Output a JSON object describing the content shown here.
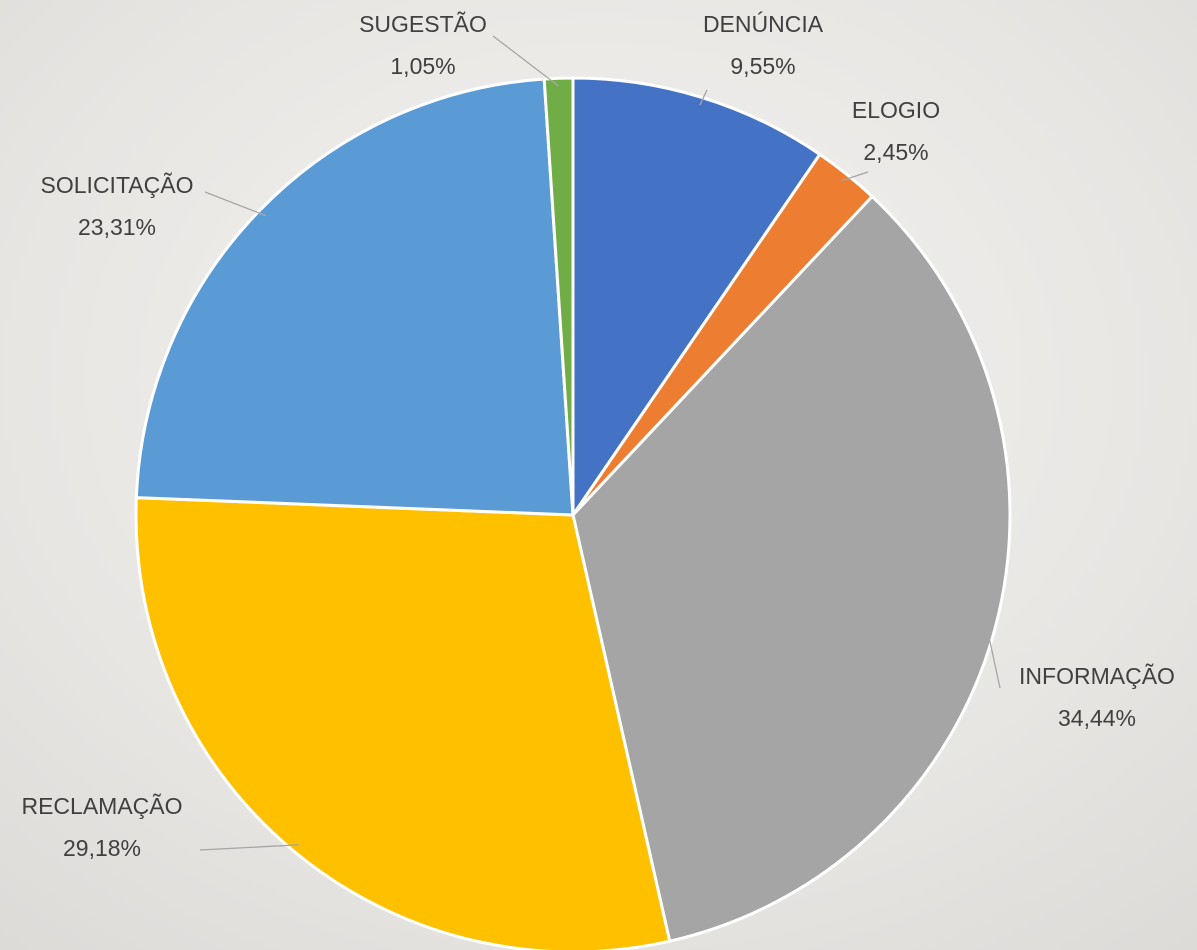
{
  "chart_data": {
    "type": "pie",
    "categories": [
      "DENÚNCIA",
      "ELOGIO",
      "INFORMAÇÃO",
      "RECLAMAÇÃO",
      "SOLICITAÇÃO",
      "SUGESTÃO"
    ],
    "values": [
      9.55,
      2.45,
      34.44,
      29.18,
      23.31,
      1.05
    ],
    "value_labels": [
      "9,55%",
      "2,45%",
      "34,44%",
      "29,18%",
      "23,31%",
      "1,05%"
    ],
    "colors": [
      "#4472c4",
      "#ed7d31",
      "#a5a5a5",
      "#ffc000",
      "#5b9bd5",
      "#70ad47"
    ]
  }
}
